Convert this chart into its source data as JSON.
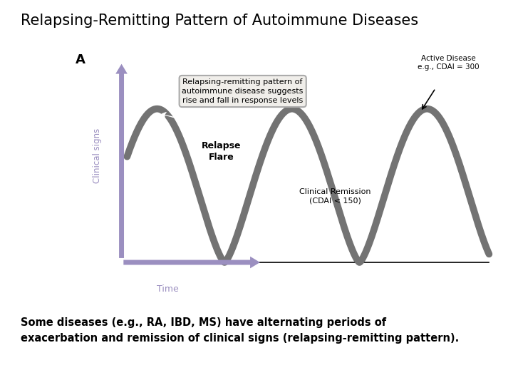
{
  "title": "Relapsing-Remitting Pattern of Autoimmune Diseases",
  "title_fontsize": 15,
  "title_fontweight": "normal",
  "bg_color": "#ffffff",
  "panel_bg": "#cec8bc",
  "panel_label": "A",
  "box_text": "Relapsing-remitting pattern of\nautoimmune disease suggests\nrise and fall in response levels",
  "box_facecolor": "#f0eeea",
  "box_edgecolor": "#aaaaaa",
  "wave_color": "#737373",
  "wave_linewidth": 7,
  "arrow_color": "#9b8fc0",
  "label_active": "Active Disease\ne.g., CDAI = 300",
  "label_relapse": "Relapse\nFlare",
  "label_remission": "Clinical Remission\n(CDAI < 150)",
  "ylabel": "Clinical signs",
  "xlabel": "Time",
  "caption_line1": "Some diseases (e.g., RA, IBD, MS) have alternating periods of",
  "caption_line2": "exacerbation and remission of clinical signs (relapsing-remitting pattern).",
  "caption_fontsize": 10.5
}
